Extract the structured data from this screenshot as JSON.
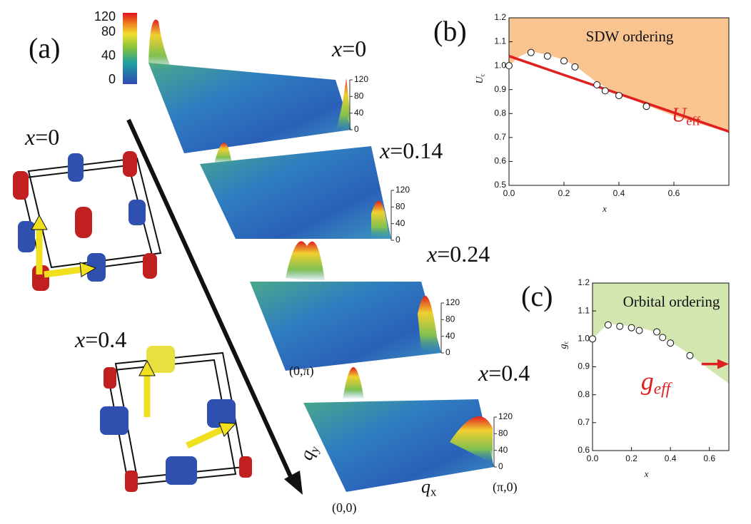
{
  "panel_labels": {
    "a": "(a)",
    "b": "(b)",
    "c": "(c)"
  },
  "colorbar": {
    "lim": [
      0,
      120
    ],
    "ticks": [
      0,
      40,
      80,
      120
    ]
  },
  "surfaces": [
    {
      "symbol": "x",
      "value": "=0"
    },
    {
      "symbol": "x",
      "value": "=0.14"
    },
    {
      "symbol": "x",
      "value": "=0.24"
    },
    {
      "symbol": "x",
      "value": "=0.4"
    }
  ],
  "surface_zlim": [
    0,
    120
  ],
  "surface_zticks": [
    0,
    40,
    80,
    120
  ],
  "fermi_labels": [
    {
      "symbol": "x",
      "value": "=0"
    },
    {
      "symbol": "x",
      "value": "=0.4"
    }
  ],
  "momentum_labels": {
    "qy": {
      "symbol": "q",
      "sub": "y"
    },
    "qx": {
      "symbol": "q",
      "sub": "x"
    },
    "zero_pi": "(0,π)",
    "origin": "(0,0)",
    "pi_zero": "(π,0)"
  },
  "chart_data": [
    {
      "type": "scatter",
      "xlabel": "x",
      "ylabel": {
        "symbol": "U",
        "sub": "c"
      },
      "xlim": [
        0,
        0.8
      ],
      "xticks": [
        {
          "value": 0,
          "label": "0.0"
        },
        0.2,
        0.4,
        0.6
      ],
      "ylim": [
        0.5,
        1.2
      ],
      "yticks": [
        0.5,
        0.6,
        0.7,
        0.8,
        0.9,
        {
          "value": 1,
          "label": "1.0"
        },
        1.1,
        1.2
      ],
      "x": [
        0,
        0.08,
        0.14,
        0.2,
        0.24,
        0.32,
        0.35,
        0.4,
        0.5
      ],
      "values": [
        1.0,
        1.055,
        1.04,
        1.02,
        0.995,
        0.92,
        0.895,
        0.875,
        0.83
      ],
      "region": {
        "label": "SDW ordering",
        "color": "#f9c48f",
        "x": [
          0,
          0.04,
          0.08,
          0.14,
          0.2,
          0.24,
          0.32,
          0.4,
          0.5,
          0.6,
          0.8
        ],
        "y": [
          1.0,
          1.04,
          1.06,
          1.045,
          1.025,
          1.0,
          0.93,
          0.88,
          0.835,
          0.79,
          0.72
        ]
      },
      "fit": {
        "label": {
          "symbol": "U",
          "sub": "eff"
        },
        "color": "#e02020",
        "x": [
          0,
          0.8
        ],
        "y": [
          1.04,
          0.725
        ]
      }
    },
    {
      "type": "scatter",
      "xlabel": "x",
      "ylabel": {
        "symbol": "g",
        "sub": "c"
      },
      "xlim": [
        0,
        0.7
      ],
      "xticks": [
        {
          "value": 0,
          "label": "0.0"
        },
        0.2,
        0.4,
        0.6
      ],
      "ylim": [
        0.6,
        1.2
      ],
      "yticks": [
        0.6,
        0.7,
        0.8,
        0.9,
        {
          "value": 1,
          "label": "1.0"
        },
        1.1,
        1.2
      ],
      "x": [
        0,
        0.08,
        0.14,
        0.2,
        0.24,
        0.33,
        0.36,
        0.4,
        0.5
      ],
      "values": [
        1.0,
        1.05,
        1.045,
        1.04,
        1.03,
        1.025,
        1.005,
        0.985,
        0.94
      ],
      "region": {
        "label": "Orbital ordering",
        "color": "#d3e6b0",
        "x": [
          0,
          0.08,
          0.2,
          0.3,
          0.4,
          0.5,
          0.6,
          0.7
        ],
        "y": [
          1.0,
          1.055,
          1.045,
          1.03,
          0.99,
          0.945,
          0.89,
          0.84
        ]
      },
      "arrow": {
        "label": {
          "symbol": "g",
          "sub": "eff"
        },
        "color": "#e02020",
        "x": [
          0.56,
          0.7
        ],
        "y": 0.91
      }
    }
  ]
}
